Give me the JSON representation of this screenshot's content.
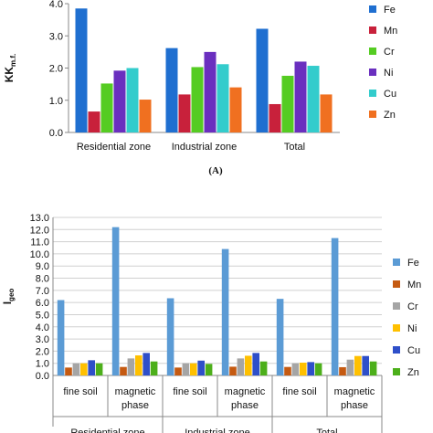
{
  "chart_data": [
    {
      "type": "bar",
      "panel_label": "(A)",
      "ylabel": "KK",
      "ylabel_sub": "m.f.",
      "ylim": [
        0,
        4.0
      ],
      "yticks": [
        "0.0",
        "1.0",
        "2.0",
        "3.0",
        "4.0"
      ],
      "categories": [
        "Residential zone",
        "Industrial zone",
        "Total"
      ],
      "legend": "right",
      "grid": false,
      "series": [
        {
          "name": "Fe",
          "color": "#1f6fd0",
          "values": [
            3.85,
            2.62,
            3.22
          ]
        },
        {
          "name": "Mn",
          "color": "#c8213b",
          "values": [
            0.65,
            1.18,
            0.88
          ]
        },
        {
          "name": "Cr",
          "color": "#55cc22",
          "values": [
            1.52,
            2.03,
            1.76
          ]
        },
        {
          "name": "Ni",
          "color": "#6a2fbf",
          "values": [
            1.92,
            2.5,
            2.2
          ]
        },
        {
          "name": "Cu",
          "color": "#33cccc",
          "values": [
            2.0,
            2.12,
            2.07
          ]
        },
        {
          "name": "Zn",
          "color": "#f07020",
          "values": [
            1.02,
            1.4,
            1.18
          ]
        }
      ]
    },
    {
      "type": "bar",
      "ylabel": "I",
      "ylabel_sub": "geo",
      "ylim": [
        0,
        13.0
      ],
      "yticks": [
        "0.0",
        "1.0",
        "2.0",
        "3.0",
        "4.0",
        "5.0",
        "6.0",
        "7.0",
        "8.0",
        "9.0",
        "10.0",
        "11.0",
        "12.0",
        "13.0"
      ],
      "categories": [
        [
          "fine soil"
        ],
        [
          "magnetic",
          "phase"
        ],
        [
          "fine soil"
        ],
        [
          "magnetic",
          "phase"
        ],
        [
          "fine soil"
        ],
        [
          "magnetic",
          "phase"
        ]
      ],
      "groups": [
        "Residential zone",
        "Industrial zone",
        "Total"
      ],
      "legend": "right",
      "grid": true,
      "series": [
        {
          "name": "Fe",
          "color": "#5b9bd5",
          "values": [
            6.2,
            12.2,
            6.35,
            10.4,
            6.3,
            11.3
          ]
        },
        {
          "name": "Mn",
          "color": "#c55a11",
          "values": [
            0.65,
            0.7,
            0.65,
            0.72,
            0.7,
            0.68
          ]
        },
        {
          "name": "Cr",
          "color": "#a5a5a5",
          "values": [
            1.0,
            1.4,
            1.0,
            1.4,
            1.0,
            1.3
          ]
        },
        {
          "name": "Ni",
          "color": "#ffc000",
          "values": [
            1.0,
            1.65,
            1.0,
            1.62,
            1.05,
            1.6
          ]
        },
        {
          "name": "Cu",
          "color": "#2e4fc9",
          "values": [
            1.25,
            1.85,
            1.22,
            1.85,
            1.1,
            1.6
          ]
        },
        {
          "name": "Zn",
          "color": "#4caf1a",
          "values": [
            1.0,
            1.15,
            0.95,
            1.15,
            1.0,
            1.15
          ]
        }
      ]
    }
  ]
}
